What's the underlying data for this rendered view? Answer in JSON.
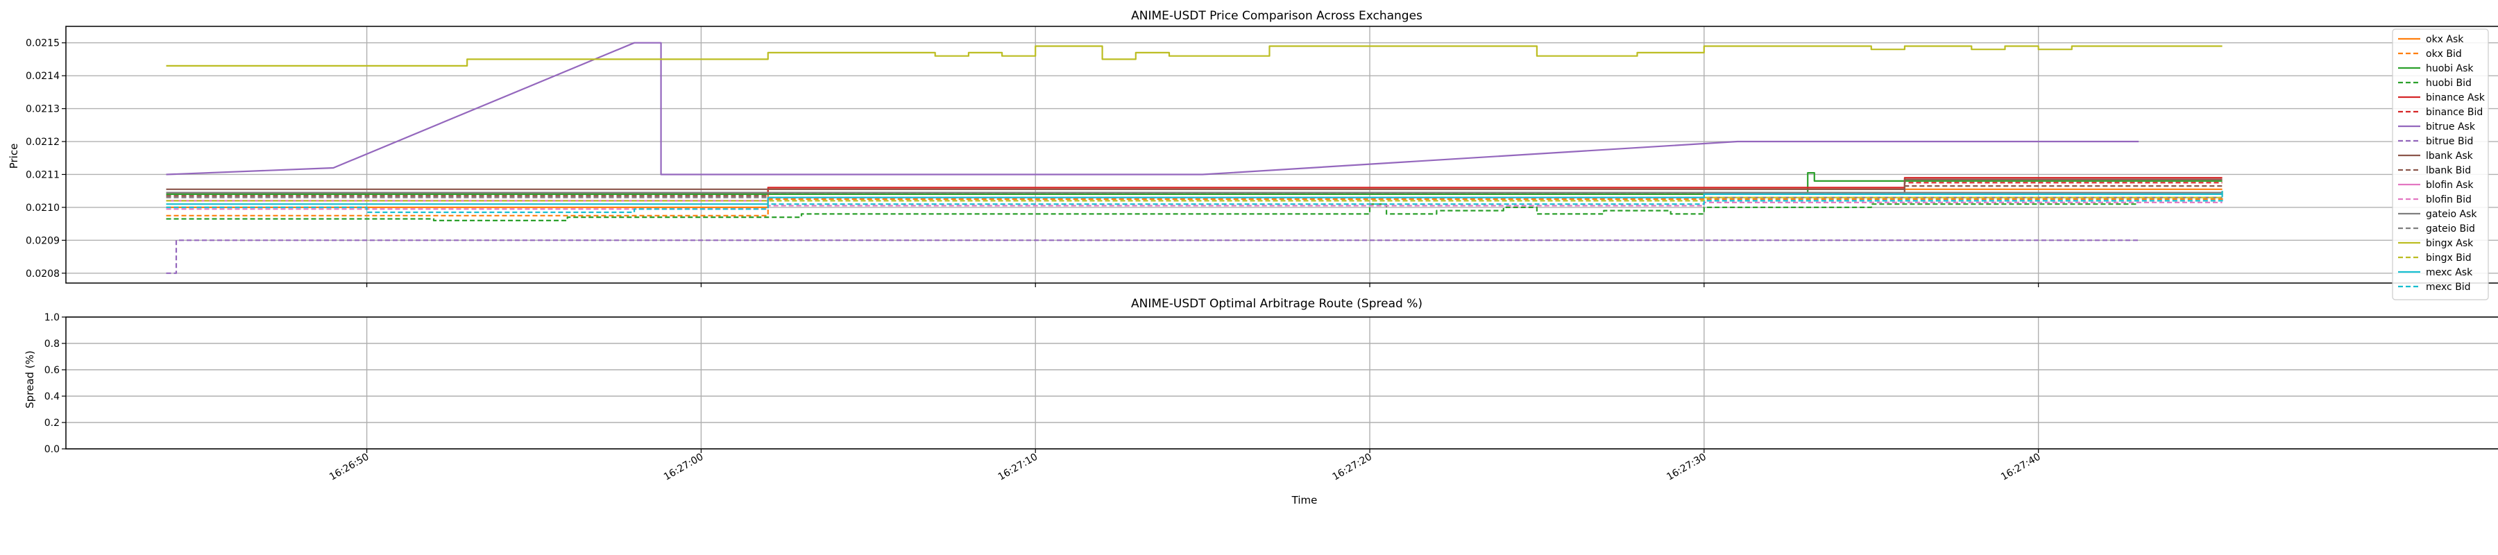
{
  "chart_data": [
    {
      "type": "line",
      "title": "ANIME-USDT Price Comparison Across Exchanges",
      "xlabel": "",
      "ylabel": "Price",
      "ylim": [
        0.02077,
        0.02155
      ],
      "yticks": [
        "0.0208",
        "0.0209",
        "0.0210",
        "0.0211",
        "0.0212",
        "0.0213",
        "0.0214",
        "0.0215"
      ],
      "ytick_values": [
        0.0208,
        0.0209,
        0.021,
        0.0211,
        0.0212,
        0.0213,
        0.0214,
        0.0215
      ],
      "xlim": [
        "16:26:41",
        "16:27:55.2"
      ],
      "grid": true,
      "legend_position": "right",
      "series": [
        {
          "name": "okx Ask",
          "color": "#ff7f0e",
          "dash": "solid",
          "x": [
            "16:26:44",
            "16:26:58",
            "16:27:02",
            "16:27:25",
            "16:27:33",
            "16:27:45.5"
          ],
          "y": [
            0.021,
            0.021,
            0.021055,
            0.021055,
            0.021055,
            0.021055
          ]
        },
        {
          "name": "okx Bid",
          "color": "#ff7f0e",
          "dash": "dash",
          "x": [
            "16:26:44",
            "16:26:55",
            "16:27:02",
            "16:27:33",
            "16:27:45.5"
          ],
          "y": [
            0.020975,
            0.020975,
            0.021025,
            0.021025,
            0.02105
          ]
        },
        {
          "name": "huobi Ask",
          "color": "#2ca02c",
          "dash": "solid",
          "x": [
            "16:26:44",
            "16:26:54",
            "16:27:32",
            "16:27:33.1",
            "16:27:33.3",
            "16:27:33.5",
            "16:27:38",
            "16:27:45.5"
          ],
          "y": [
            0.02104,
            0.02104,
            0.02104,
            0.021105,
            0.02108,
            0.02108,
            0.02108,
            0.02108
          ]
        },
        {
          "name": "huobi Bid",
          "color": "#2ca02c",
          "dash": "dash",
          "x": [
            "16:26:44",
            "16:26:48",
            "16:26:52",
            "16:26:56",
            "16:27:03",
            "16:27:05",
            "16:27:14",
            "16:27:16",
            "16:27:20",
            "16:27:20.5",
            "16:27:22",
            "16:27:24",
            "16:27:25",
            "16:27:27",
            "16:27:29",
            "16:27:30",
            "16:27:33",
            "16:27:35",
            "16:27:43"
          ],
          "y": [
            0.020965,
            0.020965,
            0.02096,
            0.02097,
            0.02098,
            0.02098,
            0.02098,
            0.02098,
            0.02101,
            0.02098,
            0.02099,
            0.021,
            0.02098,
            0.02099,
            0.02098,
            0.021,
            0.021,
            0.02101,
            0.02101
          ]
        },
        {
          "name": "binance Ask",
          "color": "#d62728",
          "dash": "solid",
          "x": [
            "16:26:44",
            "16:26:58",
            "16:27:02",
            "16:27:30",
            "16:27:34",
            "16:27:36",
            "16:27:45.5"
          ],
          "y": [
            0.021045,
            0.021045,
            0.02106,
            0.02106,
            0.02106,
            0.02109,
            0.02109
          ]
        },
        {
          "name": "binance Bid",
          "color": "#d62728",
          "dash": "dash",
          "x": [
            "16:26:44",
            "16:26:58",
            "16:27:02",
            "16:27:30",
            "16:27:36",
            "16:27:45.5"
          ],
          "y": [
            0.021035,
            0.021035,
            0.021045,
            0.021045,
            0.021075,
            0.021075
          ]
        },
        {
          "name": "bitrue Ask",
          "color": "#9467bd",
          "dash": "solid",
          "x": [
            "16:26:44",
            "16:26:49",
            "16:26:58",
            "16:26:58.8",
            "16:27:15",
            "16:27:31",
            "16:27:43"
          ],
          "y": [
            0.0211,
            0.02112,
            0.0215,
            0.0211,
            0.0211,
            0.0212,
            0.0212
          ]
        },
        {
          "name": "bitrue Bid",
          "color": "#9467bd",
          "dash": "dash",
          "x": [
            "16:26:44",
            "16:26:44.3",
            "16:27:43"
          ],
          "y": [
            0.0208,
            0.0209,
            0.0209
          ]
        },
        {
          "name": "lbank Ask",
          "color": "#8c564b",
          "dash": "solid",
          "x": [
            "16:26:44",
            "16:26:58",
            "16:27:02",
            "16:27:36",
            "16:27:45.5"
          ],
          "y": [
            0.021055,
            0.021055,
            0.021055,
            0.021085,
            0.021085
          ]
        },
        {
          "name": "lbank Bid",
          "color": "#8c564b",
          "dash": "dash",
          "x": [
            "16:26:44",
            "16:26:58",
            "16:27:02",
            "16:27:36",
            "16:27:45.5"
          ],
          "y": [
            0.021035,
            0.021035,
            0.021045,
            0.021065,
            0.021065
          ]
        },
        {
          "name": "blofin Ask",
          "color": "#e377c2",
          "dash": "solid",
          "x": [
            "16:26:44",
            "16:26:58",
            "16:27:02",
            "16:27:30",
            "16:27:45.5"
          ],
          "y": [
            0.02102,
            0.02102,
            0.02103,
            0.02104,
            0.02104
          ]
        },
        {
          "name": "blofin Bid",
          "color": "#e377c2",
          "dash": "dash",
          "x": [
            "16:26:44",
            "16:27:02",
            "16:27:30",
            "16:27:45.5"
          ],
          "y": [
            0.020995,
            0.021005,
            0.021015,
            0.021015
          ]
        },
        {
          "name": "gateio Ask",
          "color": "#7f7f7f",
          "dash": "solid",
          "x": [
            "16:26:44",
            "16:27:45.5"
          ],
          "y": [
            0.021045,
            0.021045
          ]
        },
        {
          "name": "gateio Bid",
          "color": "#7f7f7f",
          "dash": "dash",
          "x": [
            "16:26:44",
            "16:27:45.5"
          ],
          "y": [
            0.02103,
            0.02103
          ]
        },
        {
          "name": "bingx Ask",
          "color": "#bcbd22",
          "dash": "solid",
          "x": [
            "16:26:44",
            "16:26:52",
            "16:26:53",
            "16:27:01",
            "16:27:02",
            "16:27:06",
            "16:27:07",
            "16:27:08",
            "16:27:09",
            "16:27:10",
            "16:27:11",
            "16:27:12",
            "16:27:13",
            "16:27:14",
            "16:27:15",
            "16:27:16",
            "16:27:17",
            "16:27:18",
            "16:27:20",
            "16:27:24",
            "16:27:25",
            "16:27:27",
            "16:27:28",
            "16:27:30",
            "16:27:31",
            "16:27:34",
            "16:27:35",
            "16:27:36",
            "16:27:38",
            "16:27:39",
            "16:27:40",
            "16:27:41",
            "16:27:45.5"
          ],
          "y": [
            0.02143,
            0.02143,
            0.02145,
            0.02145,
            0.02147,
            0.02147,
            0.02146,
            0.02147,
            0.02146,
            0.02149,
            0.02149,
            0.02145,
            0.02147,
            0.02146,
            0.02146,
            0.02146,
            0.02149,
            0.02149,
            0.02149,
            0.02149,
            0.02146,
            0.02146,
            0.02147,
            0.02149,
            0.02149,
            0.02149,
            0.02148,
            0.02149,
            0.02148,
            0.02149,
            0.02148,
            0.02149,
            0.02149
          ]
        },
        {
          "name": "bingx Bid",
          "color": "#bcbd22",
          "dash": "dash",
          "x": [
            "16:26:44",
            "16:27:02",
            "16:27:30",
            "16:27:45.5"
          ],
          "y": [
            0.02102,
            0.02102,
            0.02103,
            0.02103
          ]
        },
        {
          "name": "mexc Ask",
          "color": "#17becf",
          "dash": "solid",
          "x": [
            "16:26:44",
            "16:26:58",
            "16:27:02",
            "16:27:30",
            "16:27:45.5"
          ],
          "y": [
            0.02101,
            0.02101,
            0.02103,
            0.02104,
            0.02105
          ]
        },
        {
          "name": "mexc Bid",
          "color": "#17becf",
          "dash": "dash",
          "x": [
            "16:26:44",
            "16:26:50",
            "16:26:58",
            "16:27:02",
            "16:27:30",
            "16:27:45.5"
          ],
          "y": [
            0.021,
            0.020985,
            0.020995,
            0.02101,
            0.02102,
            0.02104
          ]
        }
      ]
    },
    {
      "type": "line",
      "title": "ANIME-USDT Optimal Arbitrage Route (Spread %)",
      "xlabel": "Time",
      "ylabel": "Spread (%)",
      "ylim": [
        0.0,
        1.0
      ],
      "yticks": [
        "0.0",
        "0.2",
        "0.4",
        "0.6",
        "0.8",
        "1.0"
      ],
      "ytick_values": [
        0,
        0.2,
        0.4,
        0.6,
        0.8,
        1.0
      ],
      "xlim": [
        "16:26:41",
        "16:27:55.2"
      ],
      "xticks": [
        "16:26:50",
        "16:27:00",
        "16:27:10",
        "16:27:20",
        "16:27:30",
        "16:27:40"
      ],
      "grid": true,
      "series": []
    }
  ]
}
